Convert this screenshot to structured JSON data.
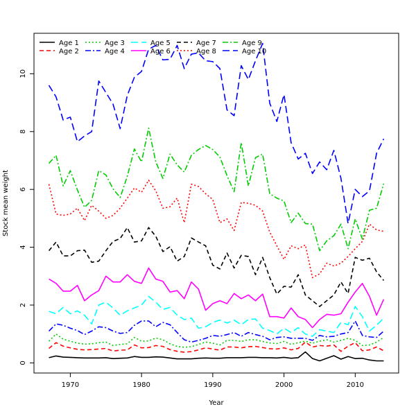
{
  "chart_data": {
    "type": "line",
    "title": "",
    "xlabel": "Year",
    "ylabel": "Stock mean weight",
    "xlim": [
      1964.9,
      2016.1
    ],
    "ylim": [
      -0.35,
      11.4
    ],
    "xticks": [
      1970,
      1980,
      1990,
      2000,
      2010
    ],
    "yticks": [
      0,
      2,
      4,
      6,
      8,
      10
    ],
    "legend_position": "top-left",
    "x": [
      1967,
      1968,
      1969,
      1970,
      1971,
      1972,
      1973,
      1974,
      1975,
      1976,
      1977,
      1978,
      1979,
      1980,
      1981,
      1982,
      1983,
      1984,
      1985,
      1986,
      1987,
      1988,
      1989,
      1990,
      1991,
      1992,
      1993,
      1994,
      1995,
      1996,
      1997,
      1998,
      1999,
      2000,
      2001,
      2002,
      2003,
      2004,
      2005,
      2006,
      2007,
      2008,
      2009,
      2010,
      2011,
      2012,
      2013,
      2014
    ],
    "series": [
      {
        "name": "Age 1",
        "color": "#000000",
        "dash": "solid",
        "values": [
          0.18,
          0.24,
          0.2,
          0.19,
          0.18,
          0.17,
          0.17,
          0.17,
          0.18,
          0.15,
          0.16,
          0.17,
          0.22,
          0.19,
          0.19,
          0.21,
          0.2,
          0.17,
          0.14,
          0.14,
          0.14,
          0.16,
          0.17,
          0.16,
          0.16,
          0.18,
          0.18,
          0.18,
          0.19,
          0.19,
          0.18,
          0.18,
          0.17,
          0.19,
          0.16,
          0.18,
          0.38,
          0.15,
          0.07,
          0.16,
          0.25,
          0.13,
          0.22,
          0.15,
          0.16,
          0.1,
          0.07,
          0.07
        ]
      },
      {
        "name": "Age 2",
        "color": "#ff0000",
        "dash": "6,4",
        "values": [
          0.5,
          0.7,
          0.58,
          0.52,
          0.47,
          0.45,
          0.46,
          0.48,
          0.5,
          0.41,
          0.44,
          0.45,
          0.62,
          0.52,
          0.53,
          0.6,
          0.57,
          0.46,
          0.4,
          0.37,
          0.39,
          0.45,
          0.52,
          0.48,
          0.44,
          0.55,
          0.55,
          0.52,
          0.56,
          0.57,
          0.53,
          0.49,
          0.48,
          0.52,
          0.45,
          0.5,
          0.72,
          0.55,
          0.6,
          0.58,
          0.62,
          0.4,
          0.58,
          0.7,
          0.42,
          0.45,
          0.55,
          0.42
        ]
      },
      {
        "name": "Age 3",
        "color": "#00cd00",
        "dash": "2,3",
        "values": [
          0.75,
          1.0,
          0.82,
          0.75,
          0.68,
          0.65,
          0.66,
          0.7,
          0.72,
          0.6,
          0.64,
          0.66,
          0.88,
          0.75,
          0.76,
          0.86,
          0.8,
          0.66,
          0.57,
          0.54,
          0.56,
          0.64,
          0.72,
          0.68,
          0.62,
          0.78,
          0.78,
          0.74,
          0.8,
          0.8,
          0.74,
          0.69,
          0.67,
          0.74,
          0.64,
          0.7,
          0.75,
          0.68,
          0.75,
          0.8,
          0.72,
          0.78,
          0.85,
          0.78,
          0.6,
          0.62,
          0.72,
          0.88
        ]
      },
      {
        "name": "Age 4",
        "color": "#0000ff",
        "dash": "8,3,2,3",
        "values": [
          1.1,
          1.35,
          1.3,
          1.2,
          1.12,
          0.98,
          1.1,
          1.25,
          1.22,
          1.1,
          1.02,
          1.05,
          1.3,
          1.45,
          1.45,
          1.25,
          1.4,
          1.32,
          1.05,
          0.8,
          0.72,
          0.78,
          0.85,
          0.95,
          0.92,
          0.98,
          1.05,
          0.92,
          1.05,
          0.98,
          0.92,
          0.8,
          0.88,
          0.9,
          0.85,
          0.85,
          0.85,
          0.78,
          0.95,
          0.9,
          0.92,
          1.0,
          1.05,
          1.45,
          0.95,
          0.9,
          0.88,
          1.1
        ]
      },
      {
        "name": "Age 5",
        "color": "#00ffff",
        "dash": "10,5",
        "values": [
          1.78,
          1.7,
          1.92,
          1.7,
          1.8,
          1.65,
          1.35,
          2.0,
          2.1,
          1.9,
          1.65,
          1.8,
          1.9,
          2.0,
          2.3,
          2.1,
          1.85,
          1.92,
          1.65,
          1.5,
          1.55,
          1.2,
          1.25,
          1.4,
          1.48,
          1.38,
          1.48,
          1.32,
          1.5,
          1.52,
          1.2,
          1.12,
          1.0,
          1.2,
          1.05,
          1.22,
          1.0,
          0.92,
          1.15,
          1.1,
          1.05,
          1.4,
          1.32,
          1.95,
          1.6,
          1.1,
          1.3,
          1.55
        ]
      },
      {
        "name": "Age 6",
        "color": "#ff00ff",
        "dash": "solid",
        "values": [
          2.9,
          2.75,
          2.48,
          2.48,
          2.68,
          2.15,
          2.35,
          2.5,
          3.0,
          2.8,
          2.8,
          3.05,
          2.82,
          2.75,
          3.28,
          2.9,
          2.82,
          2.45,
          2.5,
          2.22,
          2.8,
          2.55,
          1.82,
          2.05,
          2.15,
          2.05,
          2.4,
          2.22,
          2.35,
          2.15,
          2.38,
          1.6,
          1.6,
          1.55,
          1.9,
          1.6,
          1.5,
          1.22,
          1.5,
          1.68,
          1.65,
          1.7,
          2.1,
          2.45,
          2.75,
          2.3,
          1.65,
          2.2
        ]
      },
      {
        "name": "Age 7",
        "color": "#000000",
        "dash": "6,4",
        "values": [
          3.88,
          4.18,
          3.7,
          3.7,
          3.88,
          3.9,
          3.48,
          3.52,
          3.88,
          4.2,
          4.3,
          4.68,
          4.18,
          4.22,
          4.68,
          4.38,
          3.85,
          4.02,
          3.52,
          3.68,
          4.32,
          4.18,
          4.05,
          3.38,
          3.25,
          3.8,
          3.28,
          3.72,
          3.68,
          3.05,
          3.65,
          2.95,
          2.38,
          2.65,
          2.62,
          3.05,
          2.35,
          2.15,
          1.95,
          2.15,
          2.35,
          2.8,
          2.4,
          3.65,
          3.55,
          3.62,
          3.15,
          2.85
        ]
      },
      {
        "name": "Age 8",
        "color": "#ff0000",
        "dash": "2,3",
        "values": [
          6.18,
          5.15,
          5.1,
          5.15,
          5.35,
          4.92,
          5.45,
          5.25,
          5.0,
          5.1,
          5.35,
          5.7,
          6.05,
          5.9,
          6.32,
          5.95,
          5.35,
          5.4,
          5.7,
          4.85,
          6.18,
          6.1,
          5.85,
          5.65,
          4.85,
          4.98,
          4.58,
          5.55,
          5.52,
          5.45,
          5.25,
          4.52,
          4.05,
          3.58,
          4.05,
          3.95,
          4.08,
          2.95,
          3.08,
          3.45,
          3.35,
          3.45,
          3.68,
          3.95,
          4.2,
          4.8,
          4.6,
          4.55
        ]
      },
      {
        "name": "Age 9",
        "color": "#00cd00",
        "dash": "8,3,2,3",
        "values": [
          6.9,
          7.18,
          6.12,
          6.65,
          5.98,
          5.38,
          5.62,
          6.65,
          6.5,
          6.02,
          5.72,
          6.45,
          7.4,
          6.95,
          8.12,
          6.95,
          6.38,
          7.22,
          6.85,
          6.6,
          7.18,
          7.38,
          7.52,
          7.38,
          7.12,
          6.48,
          5.92,
          7.62,
          6.12,
          7.1,
          7.22,
          5.85,
          5.7,
          5.6,
          4.85,
          5.18,
          4.82,
          4.8,
          3.88,
          4.22,
          4.4,
          4.8,
          3.95,
          4.98,
          4.28,
          5.28,
          5.35,
          6.2
        ]
      },
      {
        "name": "Age 10",
        "color": "#0000ff",
        "dash": "10,5",
        "values": [
          9.6,
          9.2,
          8.4,
          8.5,
          7.65,
          7.85,
          8.0,
          9.75,
          9.35,
          8.95,
          8.1,
          9.25,
          9.88,
          10.08,
          10.85,
          10.98,
          10.48,
          10.5,
          10.98,
          10.18,
          10.68,
          10.72,
          10.45,
          10.42,
          10.18,
          8.75,
          8.55,
          10.28,
          9.8,
          10.45,
          11.05,
          8.98,
          8.35,
          9.28,
          7.62,
          7.05,
          7.25,
          6.55,
          6.95,
          6.68,
          7.35,
          6.38,
          4.82,
          6.0,
          5.75,
          5.95,
          7.25,
          7.75
        ]
      }
    ]
  }
}
